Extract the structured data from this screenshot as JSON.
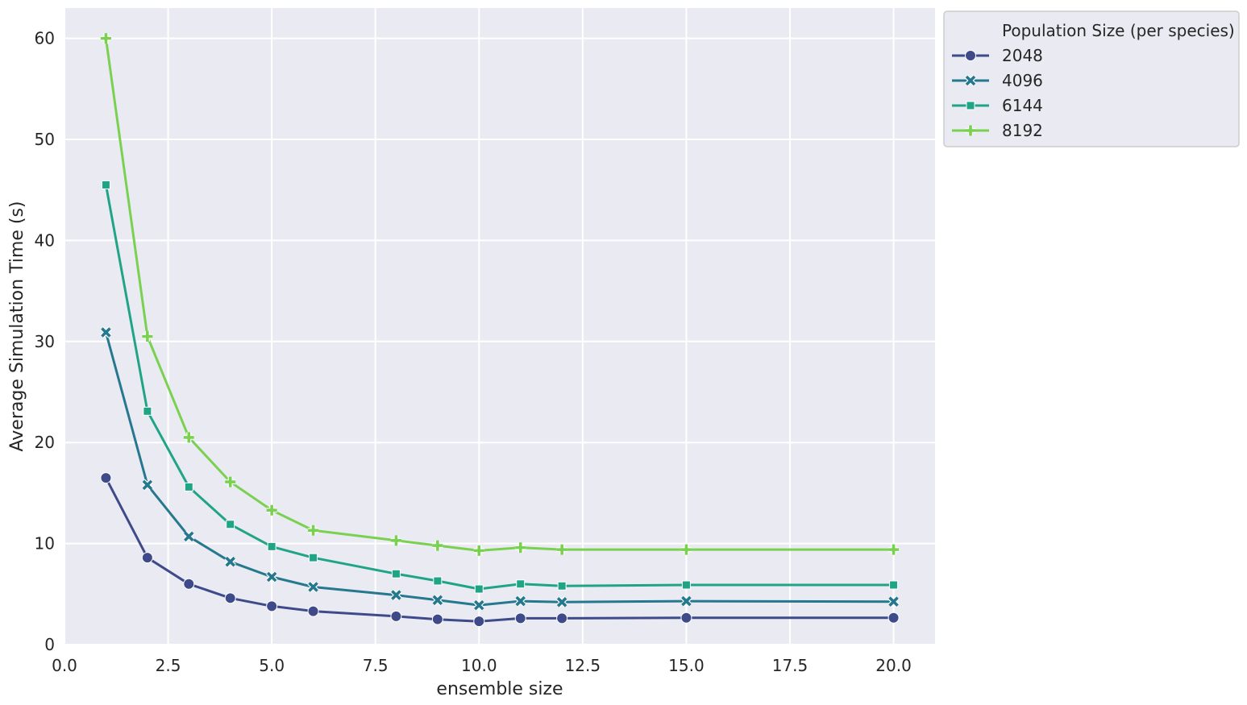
{
  "chart_data": {
    "type": "line",
    "xlabel": "ensemble size",
    "ylabel": "Average Simulation Time (s)",
    "xlim": [
      0,
      21
    ],
    "ylim": [
      0,
      63
    ],
    "xticks": [
      0.0,
      2.5,
      5.0,
      7.5,
      10.0,
      12.5,
      15.0,
      17.5,
      20.0
    ],
    "xtick_labels": [
      "0.0",
      "2.5",
      "5.0",
      "7.5",
      "10.0",
      "12.5",
      "15.0",
      "17.5",
      "20.0"
    ],
    "yticks": [
      0,
      10,
      20,
      30,
      40,
      50,
      60
    ],
    "ytick_labels": [
      "0",
      "10",
      "20",
      "30",
      "40",
      "50",
      "60"
    ],
    "grid": true,
    "background": "#eaeaf2",
    "legend": {
      "title": "Population Size (per species)",
      "placement": "outside-top-right"
    },
    "x": [
      1,
      2,
      3,
      4,
      5,
      6,
      8,
      9,
      10,
      11,
      12,
      15,
      20
    ],
    "series": [
      {
        "name": "2048",
        "marker": "circle",
        "color": "#3e4a89",
        "values": [
          16.5,
          8.6,
          6.0,
          4.6,
          3.8,
          3.3,
          2.8,
          2.5,
          2.3,
          2.6,
          2.6,
          2.65,
          2.65
        ]
      },
      {
        "name": "4096",
        "marker": "x",
        "color": "#26788e",
        "values": [
          30.9,
          15.8,
          10.7,
          8.2,
          6.7,
          5.7,
          4.9,
          4.4,
          3.9,
          4.3,
          4.2,
          4.3,
          4.25
        ]
      },
      {
        "name": "6144",
        "marker": "square",
        "color": "#20a486",
        "values": [
          45.5,
          23.1,
          15.6,
          11.9,
          9.7,
          8.6,
          7.0,
          6.3,
          5.5,
          6.0,
          5.8,
          5.9,
          5.9
        ]
      },
      {
        "name": "8192",
        "marker": "plus",
        "color": "#7ad151",
        "values": [
          60.0,
          30.5,
          20.5,
          16.1,
          13.3,
          11.3,
          10.3,
          9.8,
          9.3,
          9.6,
          9.4,
          9.4,
          9.4
        ]
      }
    ]
  }
}
